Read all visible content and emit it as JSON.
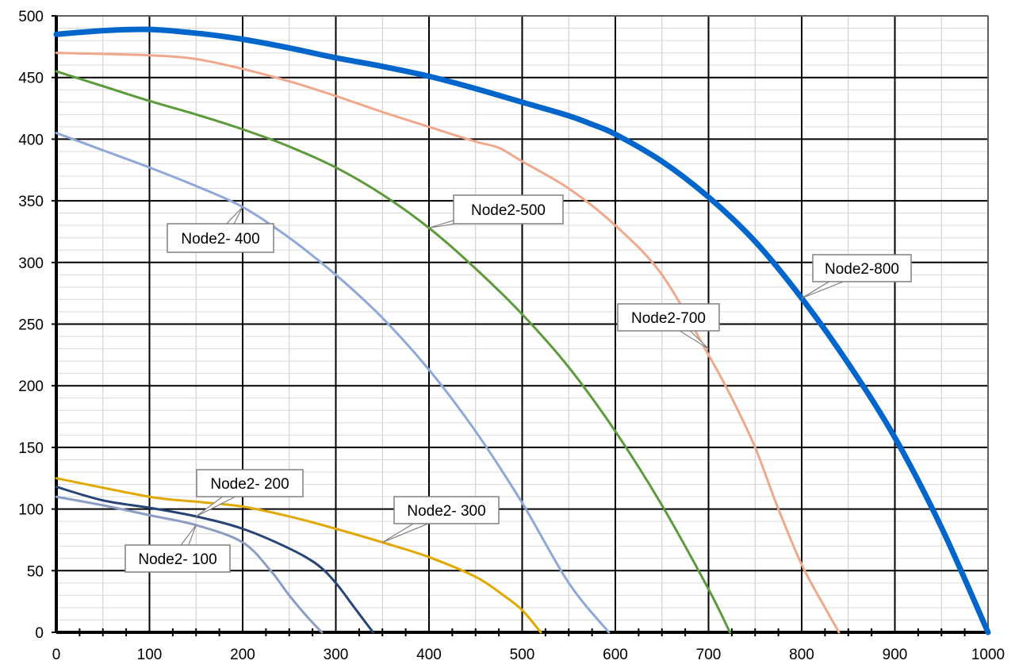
{
  "chart_data": {
    "type": "line",
    "title": "",
    "xlabel": "",
    "ylabel": "",
    "xlim": [
      0,
      1000
    ],
    "ylim": [
      0,
      500
    ],
    "x_ticks": [
      "0",
      "100",
      "200",
      "300",
      "400",
      "500",
      "600",
      "700",
      "800",
      "900",
      "1000"
    ],
    "y_ticks": [
      "0",
      "50",
      "100",
      "150",
      "200",
      "250",
      "300",
      "350",
      "400",
      "450",
      "500"
    ],
    "grid": true,
    "legend": "none",
    "series": [
      {
        "name": "Node2- 100",
        "color": "#8b9dc3",
        "points": [
          [
            0,
            110
          ],
          [
            50,
            103
          ],
          [
            100,
            95
          ],
          [
            150,
            87
          ],
          [
            200,
            73
          ],
          [
            230,
            50
          ],
          [
            250,
            30
          ],
          [
            270,
            12
          ],
          [
            285,
            0
          ]
        ]
      },
      {
        "name": "Node2- 200",
        "color": "#264478",
        "points": [
          [
            0,
            118
          ],
          [
            50,
            107
          ],
          [
            100,
            101
          ],
          [
            150,
            94
          ],
          [
            200,
            84
          ],
          [
            250,
            68
          ],
          [
            280,
            55
          ],
          [
            300,
            40
          ],
          [
            320,
            20
          ],
          [
            340,
            0
          ]
        ]
      },
      {
        "name": "Node2- 300",
        "color": "#e0a800",
        "points": [
          [
            0,
            125
          ],
          [
            100,
            110
          ],
          [
            150,
            106
          ],
          [
            200,
            102
          ],
          [
            250,
            94
          ],
          [
            300,
            84
          ],
          [
            350,
            73
          ],
          [
            400,
            61
          ],
          [
            450,
            45
          ],
          [
            480,
            30
          ],
          [
            500,
            18
          ],
          [
            520,
            0
          ]
        ]
      },
      {
        "name": "Node2- 400",
        "color": "#8fa8d8",
        "points": [
          [
            0,
            405
          ],
          [
            50,
            391
          ],
          [
            100,
            377
          ],
          [
            150,
            362
          ],
          [
            200,
            345
          ],
          [
            250,
            320
          ],
          [
            300,
            290
          ],
          [
            350,
            255
          ],
          [
            400,
            213
          ],
          [
            450,
            163
          ],
          [
            500,
            105
          ],
          [
            550,
            40
          ],
          [
            593,
            0
          ]
        ]
      },
      {
        "name": "Node2-500",
        "color": "#5c9a3c",
        "points": [
          [
            0,
            455
          ],
          [
            50,
            443
          ],
          [
            100,
            431
          ],
          [
            150,
            420
          ],
          [
            200,
            408
          ],
          [
            250,
            394
          ],
          [
            300,
            377
          ],
          [
            350,
            355
          ],
          [
            400,
            328
          ],
          [
            450,
            295
          ],
          [
            500,
            258
          ],
          [
            550,
            215
          ],
          [
            600,
            163
          ],
          [
            650,
            103
          ],
          [
            700,
            35
          ],
          [
            723,
            0
          ]
        ]
      },
      {
        "name": "Node2-700",
        "color": "#f0a88c",
        "points": [
          [
            0,
            470
          ],
          [
            100,
            468
          ],
          [
            150,
            465
          ],
          [
            200,
            457
          ],
          [
            250,
            447
          ],
          [
            300,
            435
          ],
          [
            350,
            422
          ],
          [
            400,
            410
          ],
          [
            450,
            398
          ],
          [
            475,
            393
          ],
          [
            500,
            382
          ],
          [
            550,
            360
          ],
          [
            600,
            330
          ],
          [
            650,
            290
          ],
          [
            700,
            225
          ],
          [
            725,
            190
          ],
          [
            750,
            150
          ],
          [
            775,
            100
          ],
          [
            800,
            55
          ],
          [
            825,
            20
          ],
          [
            840,
            0
          ]
        ]
      },
      {
        "name": "Node2-800",
        "color": "#0066cc",
        "points": [
          [
            0,
            485
          ],
          [
            50,
            488
          ],
          [
            100,
            489
          ],
          [
            150,
            486
          ],
          [
            200,
            481
          ],
          [
            250,
            474
          ],
          [
            300,
            466
          ],
          [
            350,
            459
          ],
          [
            400,
            451
          ],
          [
            450,
            441
          ],
          [
            500,
            430
          ],
          [
            550,
            419
          ],
          [
            575,
            412
          ],
          [
            600,
            404
          ],
          [
            650,
            382
          ],
          [
            700,
            353
          ],
          [
            750,
            317
          ],
          [
            800,
            271
          ],
          [
            850,
            218
          ],
          [
            900,
            158
          ],
          [
            950,
            85
          ],
          [
            1000,
            0
          ]
        ]
      }
    ],
    "annotations": [
      {
        "series": "Node2- 400",
        "text": "Node2- 400",
        "target_x": 200,
        "target_y": 345
      },
      {
        "series": "Node2-500",
        "text": "Node2-500",
        "target_x": 400,
        "target_y": 328
      },
      {
        "series": "Node2-800",
        "text": "Node2-800",
        "target_x": 800,
        "target_y": 271
      },
      {
        "series": "Node2-700",
        "text": "Node2-700",
        "target_x": 700,
        "target_y": 230
      },
      {
        "series": "Node2- 200",
        "text": "Node2- 200",
        "target_x": 150,
        "target_y": 94
      },
      {
        "series": "Node2- 300",
        "text": "Node2- 300",
        "target_x": 350,
        "target_y": 73
      },
      {
        "series": "Node2- 100",
        "text": "Node2- 100",
        "target_x": 150,
        "target_y": 87
      }
    ]
  }
}
